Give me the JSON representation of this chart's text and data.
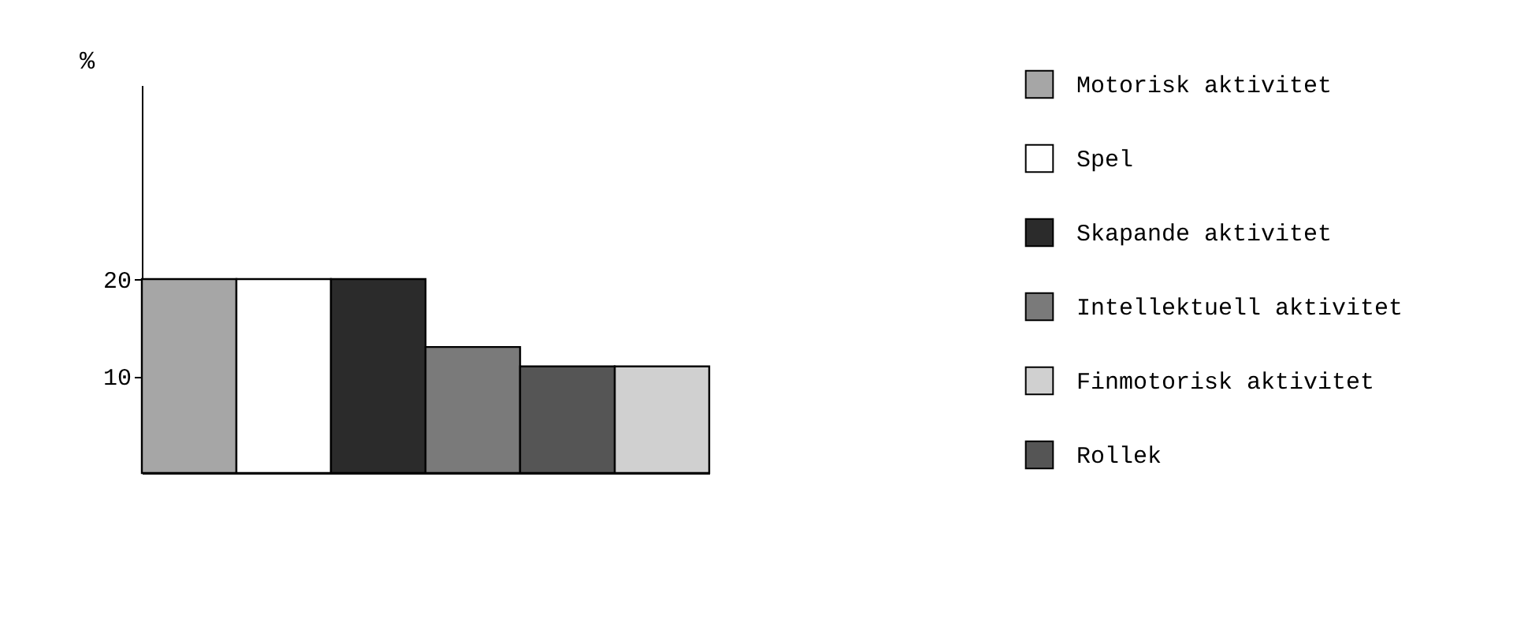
{
  "chart_data": {
    "type": "bar",
    "ylabel": "%",
    "categories": [
      null,
      null,
      null,
      null,
      null,
      null
    ],
    "series": [
      {
        "name": "Motorisk  aktivitet",
        "color": "#a6a6a6",
        "values": [
          20,
          null,
          null,
          null,
          null,
          null
        ]
      },
      {
        "name": "Spel",
        "color": "#ffffff",
        "values": [
          null,
          20,
          null,
          null,
          null,
          null
        ]
      },
      {
        "name": "Skapande aktivitet",
        "color": "#2b2b2b",
        "values": [
          null,
          null,
          20,
          null,
          null,
          null
        ]
      },
      {
        "name": "Intellektuell aktivitet",
        "color": "#7a7a7a",
        "values": [
          null,
          null,
          null,
          13,
          null,
          null
        ]
      },
      {
        "name": "Finmotorisk aktivitet",
        "color": "#d0d0d0",
        "values": [
          null,
          null,
          null,
          null,
          null,
          11
        ]
      },
      {
        "name": "Rollek",
        "color": "#555555",
        "values": [
          null,
          null,
          null,
          null,
          11,
          null
        ]
      }
    ],
    "ylim": [
      0,
      40
    ],
    "yticks": [
      10,
      20
    ],
    "legend": "right",
    "tick_labels": "y",
    "grid": false
  }
}
